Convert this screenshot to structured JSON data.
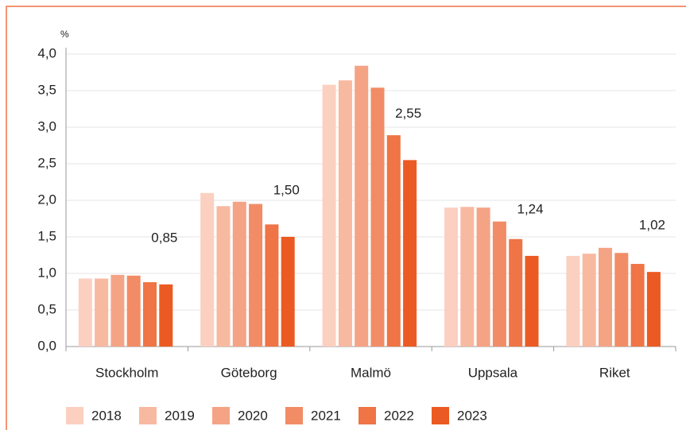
{
  "chart_data": {
    "type": "bar",
    "y_label": "%",
    "categories": [
      "Stockholm",
      "Göteborg",
      "Malmö",
      "Uppsala",
      "Riket"
    ],
    "series": [
      {
        "name": "2018",
        "color": "#fbd0c0",
        "values": [
          0.93,
          2.1,
          3.58,
          1.9,
          1.24
        ]
      },
      {
        "name": "2019",
        "color": "#f8b9a1",
        "values": [
          0.93,
          1.92,
          3.64,
          1.91,
          1.27
        ]
      },
      {
        "name": "2020",
        "color": "#f5a385",
        "values": [
          0.98,
          1.98,
          3.84,
          1.9,
          1.35
        ]
      },
      {
        "name": "2021",
        "color": "#f28c66",
        "values": [
          0.97,
          1.95,
          3.54,
          1.71,
          1.28
        ]
      },
      {
        "name": "2022",
        "color": "#ef7446",
        "values": [
          0.88,
          1.67,
          2.89,
          1.47,
          1.13
        ]
      },
      {
        "name": "2023",
        "color": "#eb5a22",
        "values": [
          0.85,
          1.5,
          2.55,
          1.24,
          1.02
        ],
        "value_labels": [
          "0,85",
          "1,50",
          "2,55",
          "1,24",
          "1,02"
        ]
      }
    ],
    "ylim": [
      0,
      4
    ],
    "yticks": [
      {
        "value": 0,
        "label": "0,0"
      },
      {
        "value": 0.5,
        "label": "0,5"
      },
      {
        "value": 1,
        "label": "1,0"
      },
      {
        "value": 1.5,
        "label": "1,5"
      },
      {
        "value": 2,
        "label": "2,0"
      },
      {
        "value": 2.5,
        "label": "2,5"
      },
      {
        "value": 3,
        "label": "3,0"
      },
      {
        "value": 3.5,
        "label": "3,5"
      },
      {
        "value": 4,
        "label": "4,0"
      }
    ],
    "grid": true
  }
}
